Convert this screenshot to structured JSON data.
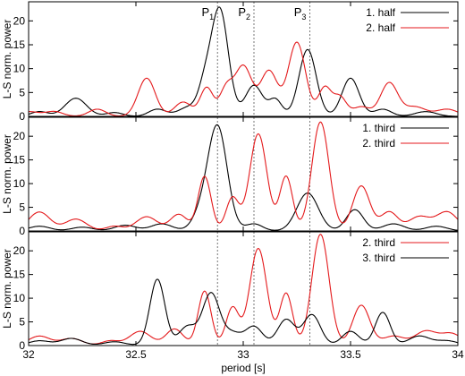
{
  "chart_data": [
    {
      "type": "line",
      "xlim": [
        32,
        34
      ],
      "ylim": [
        0,
        24
      ],
      "ylabel": "L-S norm. power",
      "xlabel": "",
      "yticks": [
        0,
        5,
        10,
        15,
        20
      ],
      "ytick_labels": [
        "0",
        "5",
        "10",
        "15",
        "20"
      ],
      "xticks": [
        32,
        32.5,
        33,
        33.5,
        34
      ],
      "show_xtick_labels": false,
      "legend": "top-right",
      "annotations": [
        {
          "label": "P",
          "sub": "1",
          "x": 32.88
        },
        {
          "label": "P",
          "sub": "2",
          "x": 33.05
        },
        {
          "label": "P",
          "sub": "3",
          "x": 33.31
        }
      ],
      "series": [
        {
          "name": "1. half",
          "color": "#000000",
          "peaks": [
            [
              32.05,
              1.0,
              0.04
            ],
            [
              32.22,
              3.8,
              0.05
            ],
            [
              32.4,
              0.8,
              0.04
            ],
            [
              32.6,
              1.5,
              0.04
            ],
            [
              32.75,
              2.0,
              0.05
            ],
            [
              32.82,
              5.0,
              0.03
            ],
            [
              32.89,
              22.5,
              0.04
            ],
            [
              33.05,
              6.5,
              0.04
            ],
            [
              33.15,
              3.5,
              0.03
            ],
            [
              33.3,
              14.0,
              0.04
            ],
            [
              33.5,
              8.0,
              0.04
            ],
            [
              33.65,
              1.5,
              0.04
            ],
            [
              33.85,
              1.0,
              0.05
            ]
          ]
        },
        {
          "name": "2. half",
          "color": "#e41a1c",
          "peaks": [
            [
              32.0,
              1.0,
              0.05
            ],
            [
              32.12,
              1.0,
              0.04
            ],
            [
              32.32,
              1.5,
              0.04
            ],
            [
              32.55,
              8.0,
              0.04
            ],
            [
              32.72,
              3.0,
              0.04
            ],
            [
              32.83,
              6.0,
              0.03
            ],
            [
              32.92,
              5.5,
              0.03
            ],
            [
              33.0,
              10.5,
              0.04
            ],
            [
              33.12,
              9.5,
              0.04
            ],
            [
              33.25,
              15.5,
              0.04
            ],
            [
              33.38,
              6.0,
              0.03
            ],
            [
              33.45,
              4.0,
              0.03
            ],
            [
              33.55,
              2.0,
              0.04
            ],
            [
              33.68,
              7.0,
              0.04
            ],
            [
              33.8,
              2.0,
              0.05
            ],
            [
              33.95,
              1.5,
              0.05
            ]
          ]
        }
      ]
    },
    {
      "type": "line",
      "xlim": [
        32,
        34
      ],
      "ylim": [
        0,
        24
      ],
      "ylabel": "L-S norm. power",
      "xlabel": "",
      "yticks": [
        0,
        5,
        10,
        15,
        20
      ],
      "ytick_labels": [
        "0",
        "5",
        "10",
        "15",
        "20"
      ],
      "xticks": [
        32,
        32.5,
        33,
        33.5,
        34
      ],
      "show_xtick_labels": false,
      "legend": "top-right",
      "series": [
        {
          "name": "1. third",
          "color": "#000000",
          "peaks": [
            [
              32.05,
              1.0,
              0.05
            ],
            [
              32.25,
              0.8,
              0.05
            ],
            [
              32.45,
              1.2,
              0.05
            ],
            [
              32.62,
              1.5,
              0.05
            ],
            [
              32.8,
              3.0,
              0.04
            ],
            [
              32.88,
              22.0,
              0.045
            ],
            [
              33.05,
              1.5,
              0.04
            ],
            [
              33.3,
              8.0,
              0.05
            ],
            [
              33.52,
              4.5,
              0.04
            ],
            [
              33.7,
              1.5,
              0.05
            ],
            [
              33.9,
              1.0,
              0.05
            ]
          ]
        },
        {
          "name": "2. third",
          "color": "#e41a1c",
          "peaks": [
            [
              32.05,
              4.0,
              0.05
            ],
            [
              32.22,
              2.5,
              0.05
            ],
            [
              32.4,
              1.0,
              0.04
            ],
            [
              32.55,
              3.0,
              0.05
            ],
            [
              32.7,
              3.5,
              0.04
            ],
            [
              32.82,
              11.5,
              0.03
            ],
            [
              32.95,
              7.0,
              0.03
            ],
            [
              33.07,
              20.5,
              0.04
            ],
            [
              33.2,
              11.5,
              0.03
            ],
            [
              33.36,
              23.0,
              0.04
            ],
            [
              33.55,
              9.5,
              0.04
            ],
            [
              33.68,
              4.0,
              0.04
            ],
            [
              33.82,
              3.0,
              0.05
            ],
            [
              33.95,
              4.0,
              0.05
            ]
          ]
        }
      ]
    },
    {
      "type": "line",
      "xlim": [
        32,
        34
      ],
      "ylim": [
        0,
        24
      ],
      "ylabel": "L-S norm. power",
      "xlabel": "period [s]",
      "yticks": [
        0,
        5,
        10,
        15,
        20
      ],
      "ytick_labels": [
        "0",
        "5",
        "10",
        "15",
        "20"
      ],
      "xticks": [
        32,
        32.5,
        33,
        33.5,
        34
      ],
      "xtick_labels": [
        "32",
        "32.5",
        "33",
        "33.5",
        "34"
      ],
      "show_xtick_labels": true,
      "legend": "top-right",
      "series": [
        {
          "name": "2. third",
          "color": "#e41a1c",
          "peaks": [
            [
              32.05,
              2.0,
              0.05
            ],
            [
              32.2,
              1.5,
              0.05
            ],
            [
              32.38,
              1.0,
              0.04
            ],
            [
              32.52,
              3.0,
              0.05
            ],
            [
              32.68,
              3.5,
              0.04
            ],
            [
              32.82,
              11.5,
              0.03
            ],
            [
              32.95,
              8.0,
              0.03
            ],
            [
              33.07,
              20.5,
              0.04
            ],
            [
              33.2,
              11.0,
              0.03
            ],
            [
              33.36,
              23.5,
              0.04
            ],
            [
              33.55,
              8.5,
              0.04
            ],
            [
              33.7,
              2.0,
              0.05
            ],
            [
              33.85,
              3.0,
              0.05
            ],
            [
              33.97,
              2.5,
              0.05
            ]
          ]
        },
        {
          "name": "3. third",
          "color": "#000000",
          "peaks": [
            [
              32.05,
              1.0,
              0.05
            ],
            [
              32.2,
              1.5,
              0.05
            ],
            [
              32.4,
              0.8,
              0.05
            ],
            [
              32.6,
              14.0,
              0.035
            ],
            [
              32.74,
              4.0,
              0.04
            ],
            [
              32.85,
              11.0,
              0.04
            ],
            [
              32.95,
              2.5,
              0.04
            ],
            [
              33.05,
              4.0,
              0.04
            ],
            [
              33.2,
              5.5,
              0.04
            ],
            [
              33.32,
              6.5,
              0.04
            ],
            [
              33.5,
              3.0,
              0.04
            ],
            [
              33.65,
              7.0,
              0.035
            ],
            [
              33.82,
              2.0,
              0.05
            ],
            [
              33.95,
              1.0,
              0.05
            ]
          ]
        }
      ]
    }
  ]
}
